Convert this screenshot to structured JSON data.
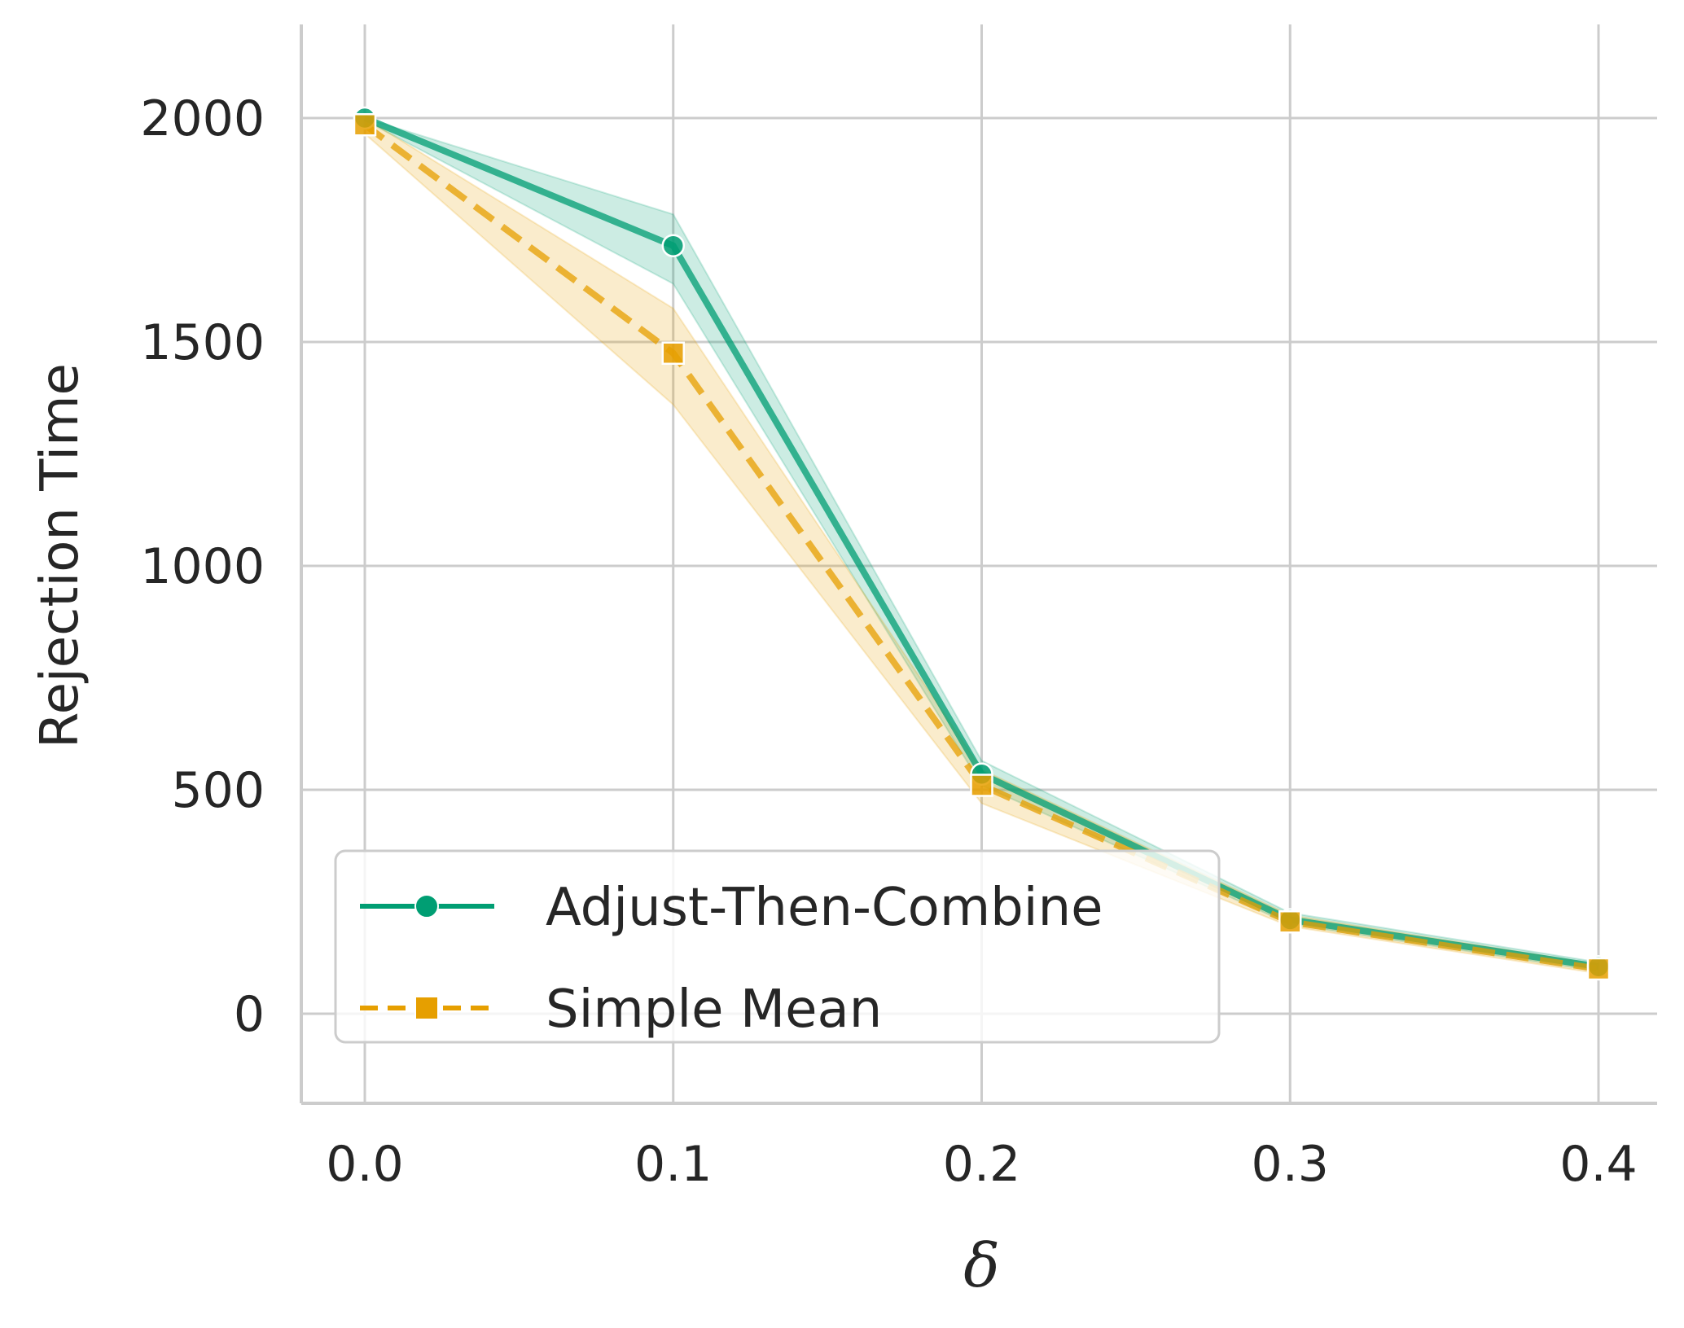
{
  "chart_data": {
    "type": "line",
    "xlabel": "δ",
    "ylabel": "Rejection Time",
    "title": "",
    "x": [
      0.0,
      0.1,
      0.2,
      0.3,
      0.4
    ],
    "x_ticks": [
      "0.0",
      "0.1",
      "0.2",
      "0.3",
      "0.4"
    ],
    "y_ticks": [
      "0",
      "500",
      "1000",
      "1500",
      "2000"
    ],
    "xlim": [
      -0.02,
      0.42
    ],
    "ylim": [
      -200,
      2200
    ],
    "grid": true,
    "legend_position": "bottom-left",
    "series": [
      {
        "name": "Adjust-Then-Combine",
        "color": "#009e73",
        "marker": "circle",
        "linestyle": "solid",
        "values": [
          2000,
          1715,
          535,
          210,
          105
        ],
        "ci_low": [
          1995,
          1630,
          510,
          200,
          95
        ],
        "ci_high": [
          2000,
          1785,
          565,
          225,
          115
        ]
      },
      {
        "name": "Simple Mean",
        "color": "#e69f00",
        "marker": "square",
        "linestyle": "dashed",
        "values": [
          1985,
          1475,
          510,
          205,
          100
        ],
        "ci_low": [
          1965,
          1360,
          470,
          195,
          90
        ],
        "ci_high": [
          2000,
          1575,
          545,
          220,
          110
        ]
      }
    ]
  }
}
